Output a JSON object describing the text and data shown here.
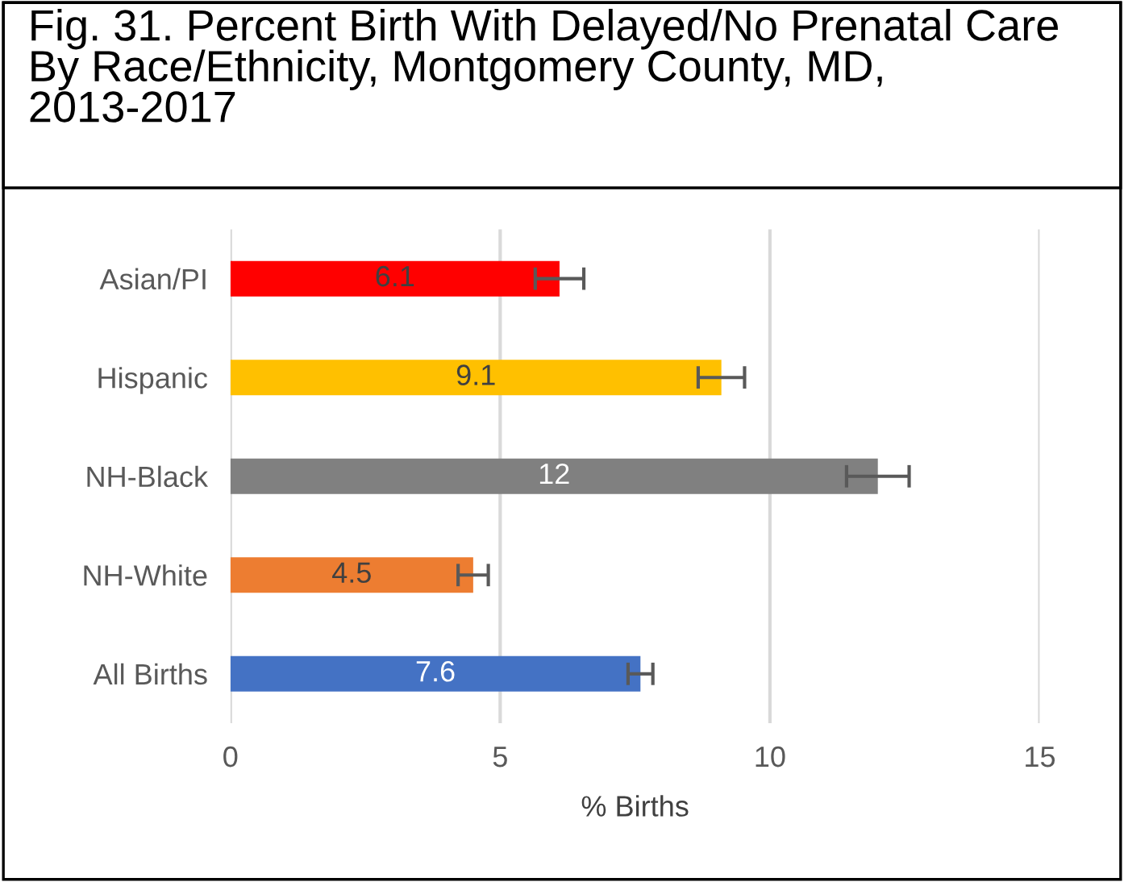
{
  "chart_data": {
    "type": "bar",
    "orientation": "horizontal",
    "title": "Fig. 31. Percent Birth With Delayed/No Prenatal Care By Race/Ethnicity, Montgomery County, MD, 2013-2017",
    "categories": [
      "Asian/PI",
      "Hispanic",
      "NH-Black",
      "NH-White",
      "All Births"
    ],
    "values": [
      6.1,
      9.1,
      12,
      4.5,
      7.6
    ],
    "colors": [
      "#ff0000",
      "#ffc000",
      "#808080",
      "#ed7d31",
      "#4472c4"
    ],
    "errors": [
      0.45,
      0.43,
      0.58,
      0.28,
      0.23
    ],
    "xlabel": "% Births",
    "xlim": [
      0,
      15
    ],
    "xticks": [
      0,
      5,
      10,
      15
    ],
    "grid": "x",
    "data_labels": true,
    "legend": false
  }
}
